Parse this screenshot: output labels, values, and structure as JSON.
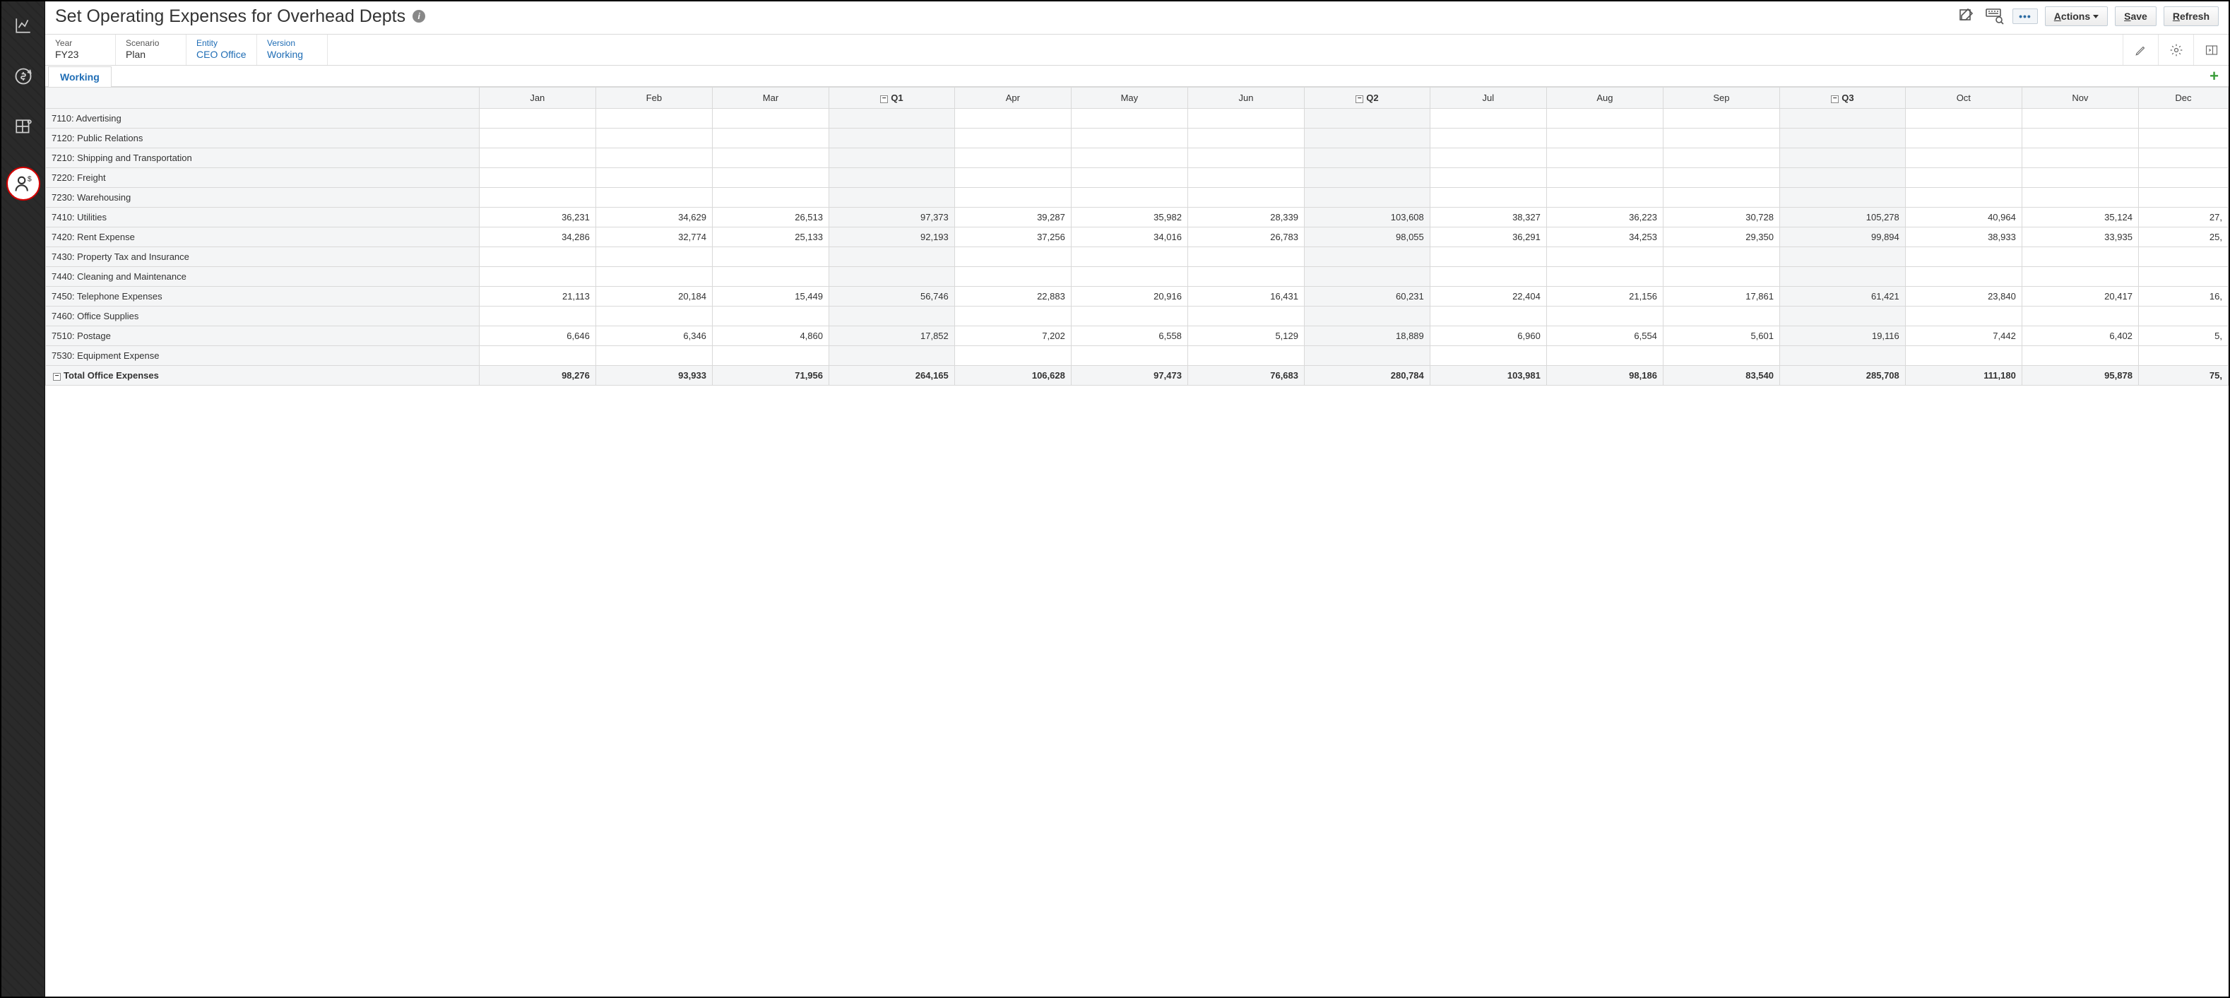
{
  "page": {
    "title": "Set Operating Expenses for Overhead Depts"
  },
  "toolbar": {
    "actions_label": "Actions",
    "save_label": "Save",
    "refresh_label": "Refresh",
    "dots_label": "•••"
  },
  "pov": {
    "year_label": "Year",
    "year_value": "FY23",
    "scenario_label": "Scenario",
    "scenario_value": "Plan",
    "entity_label": "Entity",
    "entity_value": "CEO Office",
    "version_label": "Version",
    "version_value": "Working"
  },
  "tabs": {
    "working": "Working"
  },
  "columns": {
    "jan": "Jan",
    "feb": "Feb",
    "mar": "Mar",
    "q1": "Q1",
    "apr": "Apr",
    "may": "May",
    "jun": "Jun",
    "q2": "Q2",
    "jul": "Jul",
    "aug": "Aug",
    "sep": "Sep",
    "q3": "Q3",
    "oct": "Oct",
    "nov": "Nov",
    "dec": "Dec"
  },
  "rows": {
    "r0": {
      "label": "7110: Advertising"
    },
    "r1": {
      "label": "7120: Public Relations"
    },
    "r2": {
      "label": "7210: Shipping and Transportation"
    },
    "r3": {
      "label": "7220: Freight"
    },
    "r4": {
      "label": "7230: Warehousing"
    },
    "r5": {
      "label": "7410: Utilities",
      "jan": "36,231",
      "feb": "34,629",
      "mar": "26,513",
      "q1": "97,373",
      "apr": "39,287",
      "may": "35,982",
      "jun": "28,339",
      "q2": "103,608",
      "jul": "38,327",
      "aug": "36,223",
      "sep": "30,728",
      "q3": "105,278",
      "oct": "40,964",
      "nov": "35,124",
      "dec": "27,"
    },
    "r6": {
      "label": "7420: Rent Expense",
      "jan": "34,286",
      "feb": "32,774",
      "mar": "25,133",
      "q1": "92,193",
      "apr": "37,256",
      "may": "34,016",
      "jun": "26,783",
      "q2": "98,055",
      "jul": "36,291",
      "aug": "34,253",
      "sep": "29,350",
      "q3": "99,894",
      "oct": "38,933",
      "nov": "33,935",
      "dec": "25,"
    },
    "r7": {
      "label": "7430: Property Tax and Insurance"
    },
    "r8": {
      "label": "7440: Cleaning and Maintenance"
    },
    "r9": {
      "label": "7450: Telephone Expenses",
      "jan": "21,113",
      "feb": "20,184",
      "mar": "15,449",
      "q1": "56,746",
      "apr": "22,883",
      "may": "20,916",
      "jun": "16,431",
      "q2": "60,231",
      "jul": "22,404",
      "aug": "21,156",
      "sep": "17,861",
      "q3": "61,421",
      "oct": "23,840",
      "nov": "20,417",
      "dec": "16,"
    },
    "r10": {
      "label": "7460: Office Supplies"
    },
    "r11": {
      "label": "7510: Postage",
      "jan": "6,646",
      "feb": "6,346",
      "mar": "4,860",
      "q1": "17,852",
      "apr": "7,202",
      "may": "6,558",
      "jun": "5,129",
      "q2": "18,889",
      "jul": "6,960",
      "aug": "6,554",
      "sep": "5,601",
      "q3": "19,116",
      "oct": "7,442",
      "nov": "6,402",
      "dec": "5,"
    },
    "r12": {
      "label": "7530: Equipment Expense"
    },
    "total": {
      "label": "Total Office Expenses",
      "jan": "98,276",
      "feb": "93,933",
      "mar": "71,956",
      "q1": "264,165",
      "apr": "106,628",
      "may": "97,473",
      "jun": "76,683",
      "q2": "280,784",
      "jul": "103,981",
      "aug": "98,186",
      "sep": "83,540",
      "q3": "285,708",
      "oct": "111,180",
      "nov": "95,878",
      "dec": "75,"
    }
  },
  "colors": {
    "link": "#1f6db5",
    "rail_bg": "#2a2a2a",
    "active_border": "#d40000",
    "grid_border": "#d9d9d9",
    "header_bg": "#f4f5f6"
  }
}
